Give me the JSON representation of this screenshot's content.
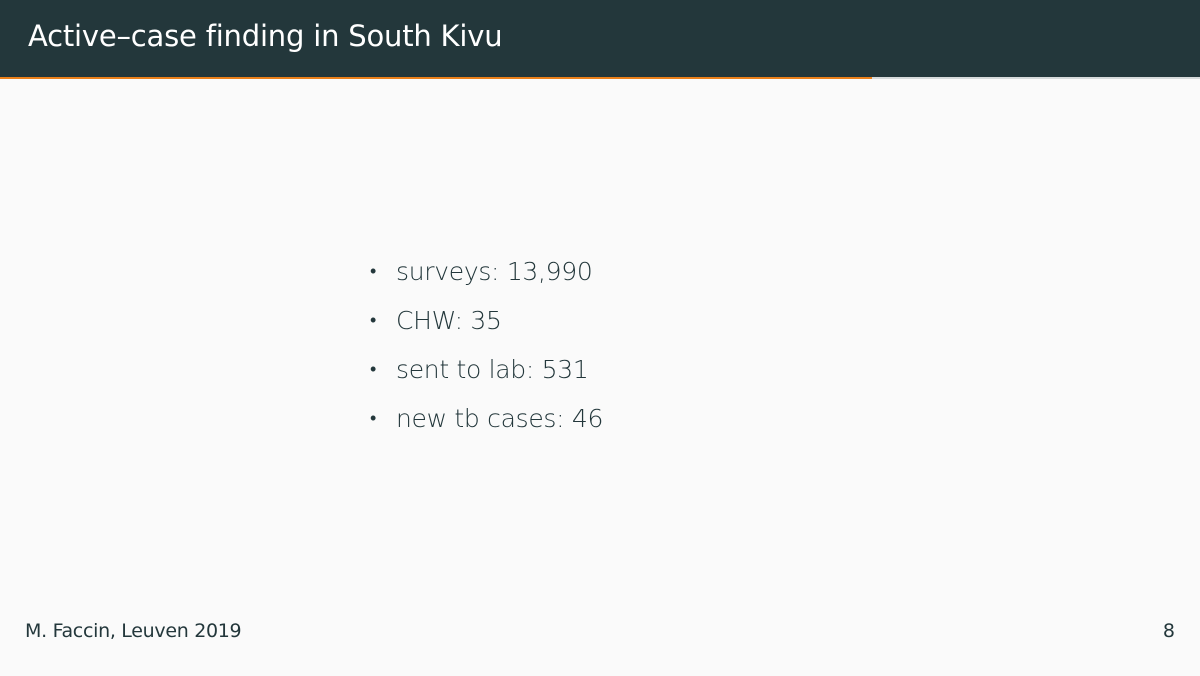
{
  "slide": {
    "title": "Active–case finding in South Kivu",
    "progress": 0.727,
    "bullets": [
      {
        "marker": "•",
        "text": "surveys: 13,990"
      },
      {
        "marker": "•",
        "text": "CHW: 35"
      },
      {
        "marker": "•",
        "text": "sent to lab: 531"
      },
      {
        "marker": "•",
        "text": "new tb cases: 46"
      }
    ],
    "footer": {
      "author_venue": "M. Faccin, Leuven 2019",
      "page_number": "8"
    }
  },
  "colors": {
    "title_background": "#23373b",
    "accent": "#eb811b",
    "slide_background": "#fafafa",
    "text": "#23373b"
  }
}
